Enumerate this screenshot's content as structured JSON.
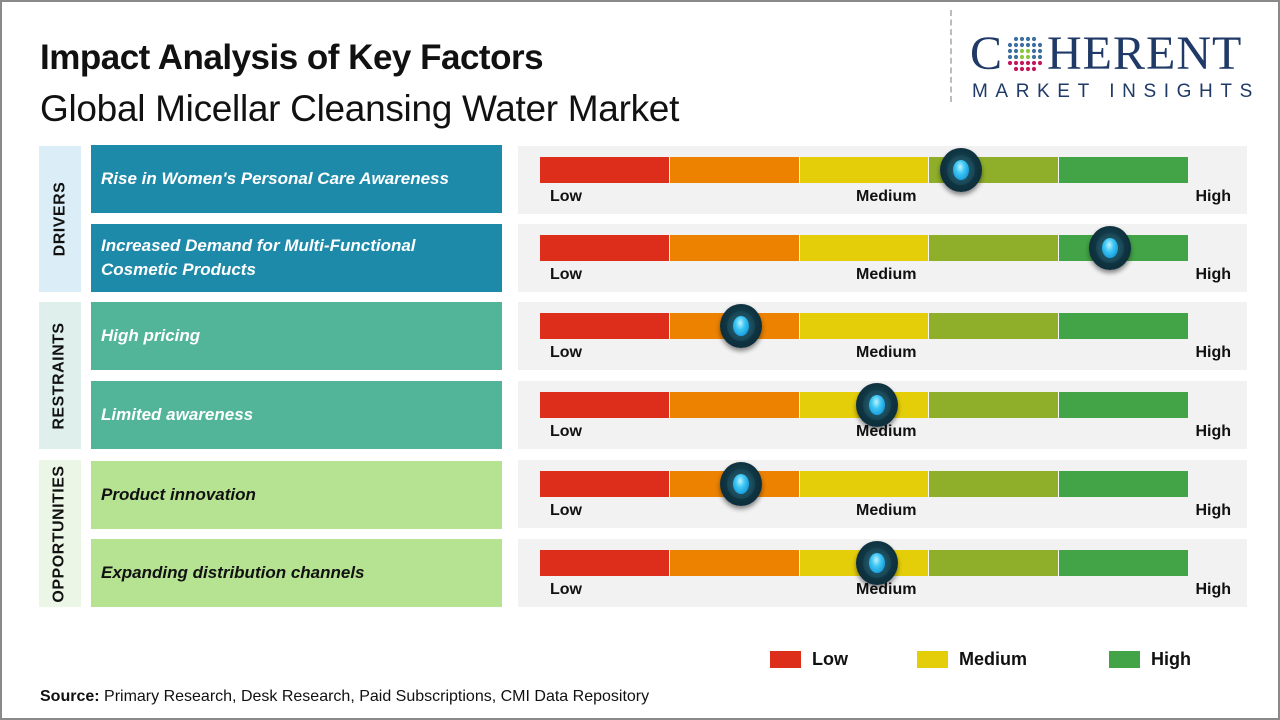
{
  "header": {
    "title": "Impact Analysis of Key Factors",
    "subtitle": "Global Micellar Cleansing Water Market"
  },
  "logo": {
    "main_left": "C",
    "main_right": "HERENT",
    "sub": "MARKET INSIGHTS",
    "icon": "globe-dots-icon"
  },
  "scale_labels": {
    "low": "Low",
    "medium": "Medium",
    "high": "High"
  },
  "segment_colors": [
    "#dd2e1c",
    "#ec8200",
    "#e4ce0a",
    "#8fae29",
    "#43a447"
  ],
  "categories": [
    {
      "label": "DRIVERS",
      "bg": "#dbeef7",
      "item_bg": "#1e8aaa",
      "item_color": "#ffffff"
    },
    {
      "label": "RESTRAINTS",
      "bg": "#dff0ec",
      "item_bg": "#52b59a",
      "item_color": "#ffffff"
    },
    {
      "label": "OPPORTUNITIES",
      "bg": "#ebf6e6",
      "item_bg": "#b6e391",
      "item_color": "#111111"
    }
  ],
  "legend": [
    {
      "label": "Low",
      "color": "#dd2e1c"
    },
    {
      "label": "Medium",
      "color": "#e4ce0a"
    },
    {
      "label": "High",
      "color": "#43a447"
    }
  ],
  "source": {
    "label": "Source:",
    "text": " Primary Research, Desk Research, Paid Subscriptions, CMI Data Repository"
  },
  "chart_data": {
    "type": "table",
    "title": "Impact Analysis of Key Factors - Global Micellar Cleansing Water Market",
    "scale": [
      "Low",
      "Medium",
      "High"
    ],
    "value_range": [
      0,
      1
    ],
    "rows": [
      {
        "category": "DRIVERS",
        "factor": "Rise in Women's Personal Care Awareness",
        "impact": 0.65,
        "impact_level": "Medium-High"
      },
      {
        "category": "DRIVERS",
        "factor": "Increased Demand for Multi-Functional Cosmetic Products",
        "impact": 0.88,
        "impact_level": "High"
      },
      {
        "category": "RESTRAINTS",
        "factor": "High pricing",
        "impact": 0.31,
        "impact_level": "Low-Medium"
      },
      {
        "category": "RESTRAINTS",
        "factor": "Limited awareness",
        "impact": 0.52,
        "impact_level": "Medium"
      },
      {
        "category": "OPPORTUNITIES",
        "factor": "Product innovation",
        "impact": 0.31,
        "impact_level": "Low-Medium"
      },
      {
        "category": "OPPORTUNITIES",
        "factor": "Expanding distribution channels",
        "impact": 0.52,
        "impact_level": "Medium"
      }
    ],
    "legend": [
      "Low",
      "Medium",
      "High"
    ]
  }
}
